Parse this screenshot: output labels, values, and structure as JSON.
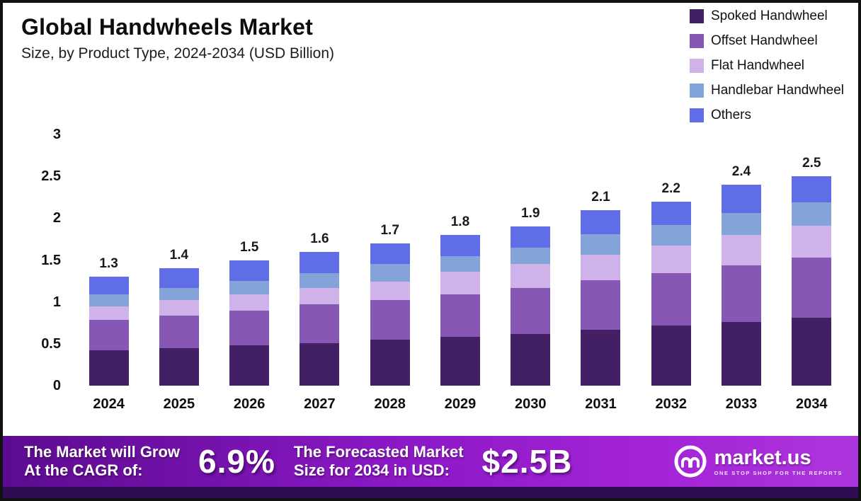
{
  "header": {
    "title": "Global Handwheels Market",
    "subtitle": "Size, by Product Type, 2024-2034 (USD Billion)"
  },
  "chart_data": {
    "type": "bar",
    "stacked": true,
    "title": "Global Handwheels Market Size, by Product Type, 2024-2034 (USD Billion)",
    "categories": [
      "2024",
      "2025",
      "2026",
      "2027",
      "2028",
      "2029",
      "2030",
      "2031",
      "2032",
      "2033",
      "2034"
    ],
    "series": [
      {
        "name": "Spoked Handwheel",
        "color": "#432066",
        "values": [
          0.42,
          0.45,
          0.48,
          0.51,
          0.55,
          0.58,
          0.62,
          0.67,
          0.72,
          0.76,
          0.81
        ]
      },
      {
        "name": "Offset Handwheel",
        "color": "#8757b5",
        "values": [
          0.37,
          0.39,
          0.42,
          0.46,
          0.47,
          0.51,
          0.55,
          0.59,
          0.62,
          0.68,
          0.72
        ]
      },
      {
        "name": "Flat Handwheel",
        "color": "#cfb2e9",
        "values": [
          0.16,
          0.18,
          0.19,
          0.2,
          0.22,
          0.27,
          0.28,
          0.3,
          0.33,
          0.36,
          0.38
        ]
      },
      {
        "name": "Handlebar Handwheel",
        "color": "#84a3d9",
        "values": [
          0.14,
          0.15,
          0.16,
          0.17,
          0.21,
          0.19,
          0.2,
          0.25,
          0.25,
          0.26,
          0.28
        ]
      },
      {
        "name": "Others",
        "color": "#5f6ee6",
        "values": [
          0.21,
          0.23,
          0.25,
          0.26,
          0.25,
          0.25,
          0.25,
          0.29,
          0.28,
          0.34,
          0.31
        ]
      }
    ],
    "totals": [
      1.3,
      1.4,
      1.5,
      1.6,
      1.7,
      1.8,
      1.9,
      2.1,
      2.2,
      2.4,
      2.5
    ],
    "ylim": [
      0,
      3
    ],
    "yticks": [
      0,
      0.5,
      1,
      1.5,
      2,
      2.5,
      3
    ],
    "grid": false,
    "legend_position": "top-right"
  },
  "banner": {
    "cagr_line1": "The Market will Grow",
    "cagr_line2": "At the CAGR of:",
    "cagr_value": "6.9%",
    "forecast_line1": "The Forecasted Market",
    "forecast_line2": "Size for 2034 in USD:",
    "forecast_value": "$2.5B",
    "brand": "market.us",
    "brand_tagline": "ONE STOP SHOP FOR THE REPORTS"
  },
  "colors": {
    "banner_gradient_start": "#5b0b8f",
    "banner_gradient_end": "#ad35dd",
    "banner_strip": "#2e0b52",
    "text_dark": "#111111"
  }
}
